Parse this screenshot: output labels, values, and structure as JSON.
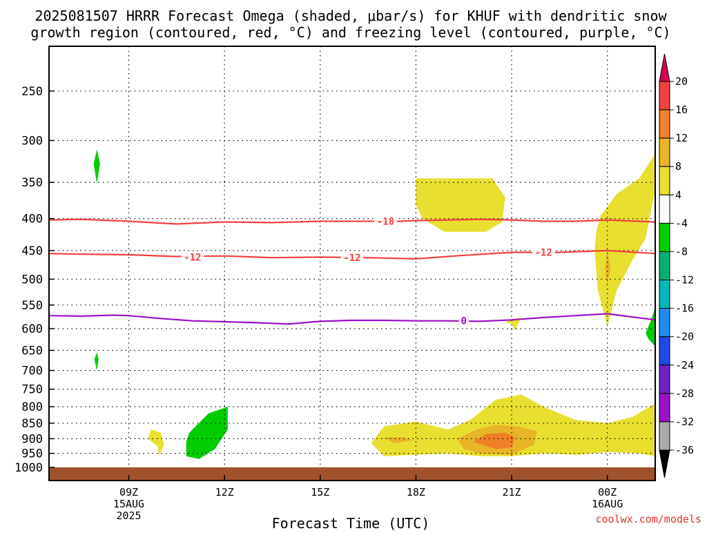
{
  "title_line1": "2025081507 HRRR Forecast Omega (shaded, μbar/s) for KHUF with dendritic snow",
  "title_line2": "growth region (contoured, red, °C) and freezing level (contoured, purple, °C)",
  "watermark": "coolwx.com/models",
  "chart_data": {
    "type": "heatmap",
    "xlabel": "Forecast Time (UTC)",
    "x_range_hours": [
      6.5,
      25.5
    ],
    "x_ticks": [
      {
        "hour": 9,
        "label": "09Z",
        "sub": [
          "15AUG",
          "2025"
        ]
      },
      {
        "hour": 12,
        "label": "12Z",
        "sub": []
      },
      {
        "hour": 15,
        "label": "15Z",
        "sub": []
      },
      {
        "hour": 18,
        "label": "18Z",
        "sub": []
      },
      {
        "hour": 21,
        "label": "21Z",
        "sub": []
      },
      {
        "hour": 24,
        "label": "00Z",
        "sub": [
          "16AUG"
        ]
      }
    ],
    "y_axis": "pressure_hPa",
    "y_scale": "log",
    "y_range": [
      1050,
      200
    ],
    "y_ticks": [
      250,
      300,
      350,
      400,
      450,
      500,
      550,
      600,
      650,
      700,
      750,
      800,
      850,
      900,
      950,
      1000
    ],
    "y_gridlines": [
      250,
      300,
      350,
      400,
      450,
      500,
      550,
      600,
      650,
      700,
      750,
      800,
      850,
      900,
      950
    ],
    "grid": true,
    "colorbar": {
      "labels": [
        "20",
        "16",
        "12",
        "8",
        "4",
        "-4",
        "-8",
        "-12",
        "-16",
        "-20",
        "-24",
        "-28",
        "-32",
        "-36"
      ],
      "colors": [
        "#d9004f",
        "#f04040",
        "#f07f28",
        "#e8b428",
        "#e8df30",
        "#ffffff",
        "#00cc00",
        "#00b070",
        "#00b8b8",
        "#1f8cf0",
        "#1e48e6",
        "#7020c8",
        "#9a10c8",
        "#a9a9a9",
        "#000000"
      ]
    },
    "omega_regions": [
      {
        "color": "#00cc00",
        "points": [
          [
            8.0,
            310
          ],
          [
            8.1,
            327
          ],
          [
            8.0,
            352
          ],
          [
            7.9,
            327
          ]
        ]
      },
      {
        "color": "#00cc00",
        "points": [
          [
            8.0,
            655
          ],
          [
            8.05,
            672
          ],
          [
            8.0,
            700
          ],
          [
            7.92,
            672
          ]
        ]
      },
      {
        "color": "#e8df30",
        "points": [
          [
            9.7,
            870
          ],
          [
            10.0,
            880
          ],
          [
            10.1,
            920
          ],
          [
            9.95,
            960
          ],
          [
            9.9,
            925
          ],
          [
            9.6,
            900
          ]
        ]
      },
      {
        "color": "#00cc00",
        "points": [
          [
            10.9,
            880
          ],
          [
            11.5,
            820
          ],
          [
            12.1,
            800
          ],
          [
            12.1,
            870
          ],
          [
            11.7,
            935
          ],
          [
            11.2,
            970
          ],
          [
            10.8,
            960
          ],
          [
            10.8,
            910
          ]
        ]
      },
      {
        "color": "#e8df30",
        "points": [
          [
            18.0,
            345
          ],
          [
            19.0,
            345
          ],
          [
            20.4,
            345
          ],
          [
            20.8,
            370
          ],
          [
            20.7,
            405
          ],
          [
            20.2,
            420
          ],
          [
            19.4,
            420
          ],
          [
            18.9,
            420
          ],
          [
            18.2,
            400
          ],
          [
            18.0,
            380
          ]
        ]
      },
      {
        "color": "#e8df30",
        "points": [
          [
            21.8,
            565
          ],
          [
            21.3,
            575
          ],
          [
            21.2,
            590
          ],
          [
            21.1,
            605
          ],
          [
            21.0,
            590
          ],
          [
            20.8,
            585
          ]
        ]
      },
      {
        "color": "#e8df30",
        "points": [
          [
            16.6,
            915
          ],
          [
            17.0,
            860
          ],
          [
            18.0,
            845
          ],
          [
            19.0,
            870
          ],
          [
            19.7,
            840
          ],
          [
            20.5,
            780
          ],
          [
            21.3,
            765
          ],
          [
            22.0,
            800
          ],
          [
            23.0,
            840
          ],
          [
            24.0,
            850
          ],
          [
            24.8,
            830
          ],
          [
            25.5,
            790
          ],
          [
            25.5,
            960
          ],
          [
            25.0,
            950
          ],
          [
            24.0,
            945
          ],
          [
            23.0,
            955
          ],
          [
            22.0,
            950
          ],
          [
            21.0,
            960
          ],
          [
            20.0,
            960
          ],
          [
            19.0,
            950
          ],
          [
            18.0,
            955
          ],
          [
            17.0,
            960
          ]
        ]
      },
      {
        "color": "#e8b428",
        "points": [
          [
            19.3,
            900
          ],
          [
            19.9,
            870
          ],
          [
            20.5,
            855
          ],
          [
            21.2,
            860
          ],
          [
            21.8,
            875
          ],
          [
            21.7,
            920
          ],
          [
            21.0,
            955
          ],
          [
            20.0,
            950
          ],
          [
            19.5,
            935
          ]
        ]
      },
      {
        "color": "#f07f28",
        "points": [
          [
            19.8,
            910
          ],
          [
            20.2,
            885
          ],
          [
            20.8,
            880
          ],
          [
            21.1,
            895
          ],
          [
            21.0,
            930
          ],
          [
            20.5,
            935
          ]
        ]
      },
      {
        "color": "#e8b428",
        "points": [
          [
            17.0,
            895
          ],
          [
            17.6,
            895
          ],
          [
            17.9,
            905
          ],
          [
            17.3,
            915
          ]
        ]
      },
      {
        "color": "#e8df30",
        "points": [
          [
            23.8,
            395
          ],
          [
            24.3,
            365
          ],
          [
            25.0,
            345
          ],
          [
            25.5,
            315
          ],
          [
            25.5,
            360
          ],
          [
            25.2,
            430
          ],
          [
            24.8,
            465
          ],
          [
            24.3,
            520
          ],
          [
            24.0,
            595
          ],
          [
            23.7,
            520
          ],
          [
            23.6,
            450
          ],
          [
            23.65,
            420
          ]
        ]
      },
      {
        "color": "#e8b428",
        "points": [
          [
            24.0,
            450
          ],
          [
            24.1,
            480
          ],
          [
            24.0,
            510
          ],
          [
            23.92,
            480
          ]
        ]
      },
      {
        "color": "#00cc00",
        "points": [
          [
            25.5,
            555
          ],
          [
            25.5,
            640
          ],
          [
            25.3,
            625
          ],
          [
            25.2,
            610
          ],
          [
            25.35,
            585
          ]
        ]
      }
    ],
    "contours": [
      {
        "label": "-18",
        "color": "#f04040",
        "points": [
          [
            6.5,
            402
          ],
          [
            7.5,
            401
          ],
          [
            9.0,
            404
          ],
          [
            10.5,
            408
          ],
          [
            12.0,
            405
          ],
          [
            13.5,
            406
          ],
          [
            15.0,
            404
          ],
          [
            16.5,
            404
          ],
          [
            17.5,
            404
          ],
          [
            18.0,
            403
          ],
          [
            19.0,
            402
          ],
          [
            20.0,
            401
          ],
          [
            21.0,
            402
          ],
          [
            22.0,
            404
          ],
          [
            23.0,
            404
          ],
          [
            24.0,
            402
          ],
          [
            25.5,
            405
          ]
        ],
        "label_positions": [
          [
            17.05,
            404
          ]
        ]
      },
      {
        "label": "-12",
        "color": "#f04040",
        "points": [
          [
            6.5,
            455
          ],
          [
            7.5,
            456
          ],
          [
            9.0,
            457
          ],
          [
            10.5,
            460
          ],
          [
            12.0,
            459
          ],
          [
            13.5,
            462
          ],
          [
            15.0,
            461
          ],
          [
            16.5,
            462
          ],
          [
            18.0,
            464
          ],
          [
            19.5,
            458
          ],
          [
            21.0,
            453
          ],
          [
            22.5,
            453
          ],
          [
            24.0,
            450
          ],
          [
            25.5,
            455
          ]
        ],
        "label_positions": [
          [
            11.0,
            461
          ],
          [
            16.0,
            462
          ],
          [
            22.0,
            453
          ]
        ]
      },
      {
        "label": "0",
        "color": "#9a10c8",
        "points": [
          [
            6.5,
            572
          ],
          [
            7.5,
            573
          ],
          [
            8.5,
            571
          ],
          [
            9.0,
            572
          ],
          [
            10.0,
            578
          ],
          [
            11.0,
            583
          ],
          [
            12.0,
            585
          ],
          [
            13.0,
            587
          ],
          [
            14.0,
            590
          ],
          [
            15.0,
            584
          ],
          [
            16.0,
            582
          ],
          [
            17.0,
            582
          ],
          [
            18.0,
            583
          ],
          [
            19.0,
            583
          ],
          [
            20.0,
            584
          ],
          [
            21.0,
            581
          ],
          [
            22.0,
            576
          ],
          [
            23.0,
            572
          ],
          [
            24.0,
            568
          ],
          [
            25.5,
            581
          ]
        ],
        "label_positions": [
          [
            19.5,
            583
          ]
        ]
      }
    ],
    "ground": {
      "from": 1000,
      "to": 1050,
      "color": "#a0522d"
    }
  }
}
